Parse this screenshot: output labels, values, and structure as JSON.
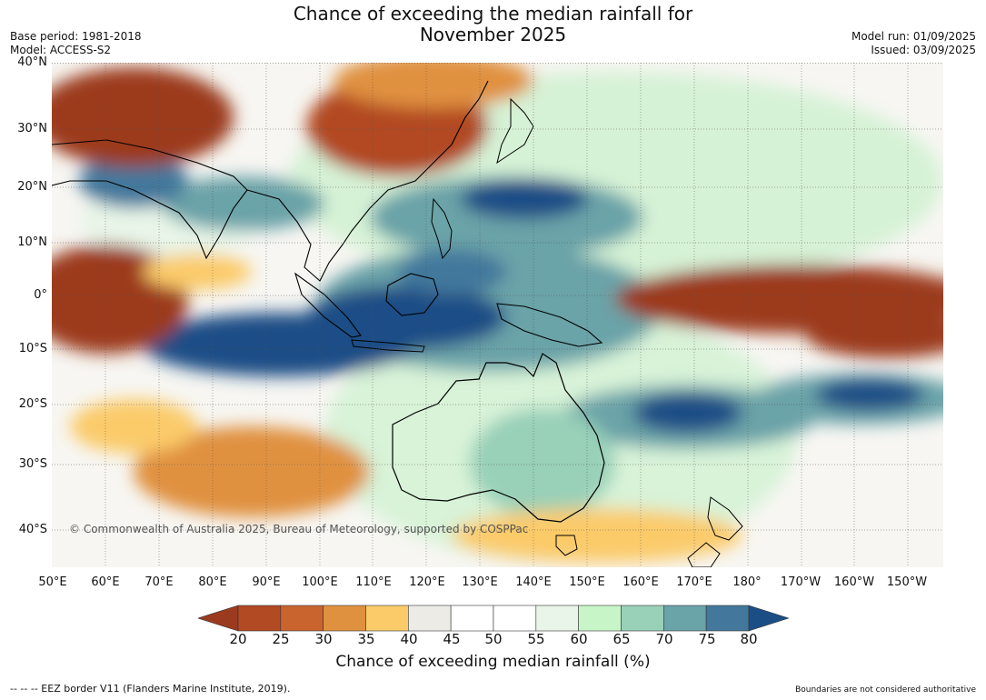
{
  "title": "Chance of exceeding the median rainfall for\nNovember 2025",
  "base_period": "Base period: 1981-2018",
  "model": "Model: ACCESS-S2",
  "model_run": "Model run: 01/09/2025",
  "issued": "Issued: 03/09/2025",
  "map": {
    "lat_labels": [
      "40°N",
      "30°N",
      "20°N",
      "10°N",
      "0°",
      "10°S",
      "20°S",
      "30°S",
      "40°S"
    ],
    "lon_labels": [
      "50°E",
      "60°E",
      "70°E",
      "80°E",
      "90°E",
      "100°E",
      "110°E",
      "120°E",
      "130°E",
      "140°E",
      "150°E",
      "160°E",
      "170°E",
      "180°",
      "170°W",
      "160°W",
      "150°W"
    ],
    "copyright": "© Commonwealth of Australia 2025, Bureau of Meteorology, supported by COSPPac"
  },
  "colorbar": {
    "label": "Chance of exceeding median rainfall (%)",
    "ticks": [
      "20",
      "25",
      "30",
      "35",
      "40",
      "45",
      "50",
      "55",
      "60",
      "65",
      "70",
      "75",
      "80"
    ],
    "colors": [
      "#9c3a1f",
      "#b24a24",
      "#c9642f",
      "#e0913f",
      "#fbcb6a",
      "#ecebe6",
      "#ffffff",
      "#ffffff",
      "#e8f5e8",
      "#c8f5c8",
      "#98d0b8",
      "#6aa3a8",
      "#43789c",
      "#1c4e86"
    ]
  },
  "footer": {
    "eez": "--  --  -- EEZ border V11 (Flanders Marine Institute, 2019).",
    "boundaries": "Boundaries are not considered authoritative"
  }
}
